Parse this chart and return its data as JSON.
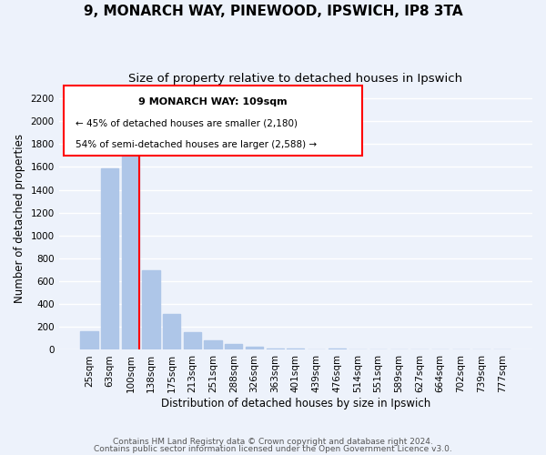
{
  "title": "9, MONARCH WAY, PINEWOOD, IPSWICH, IP8 3TA",
  "subtitle": "Size of property relative to detached houses in Ipswich",
  "xlabel": "Distribution of detached houses by size in Ipswich",
  "ylabel": "Number of detached properties",
  "categories": [
    "25sqm",
    "63sqm",
    "100sqm",
    "138sqm",
    "175sqm",
    "213sqm",
    "251sqm",
    "288sqm",
    "326sqm",
    "363sqm",
    "401sqm",
    "439sqm",
    "476sqm",
    "514sqm",
    "551sqm",
    "589sqm",
    "627sqm",
    "664sqm",
    "702sqm",
    "739sqm",
    "777sqm"
  ],
  "values": [
    160,
    1590,
    1750,
    700,
    315,
    155,
    80,
    50,
    30,
    10,
    15,
    5,
    10,
    0,
    0,
    0,
    0,
    0,
    0,
    0,
    0
  ],
  "bar_color": "#aec6e8",
  "red_line_index": 2,
  "ylim": [
    0,
    2300
  ],
  "yticks": [
    0,
    200,
    400,
    600,
    800,
    1000,
    1200,
    1400,
    1600,
    1800,
    2000,
    2200
  ],
  "annotation_title": "9 MONARCH WAY: 109sqm",
  "annotation_line1": "← 45% of detached houses are smaller (2,180)",
  "annotation_line2": "54% of semi-detached houses are larger (2,588) →",
  "footer1": "Contains HM Land Registry data © Crown copyright and database right 2024.",
  "footer2": "Contains public sector information licensed under the Open Government Licence v3.0.",
  "background_color": "#edf2fb",
  "grid_color": "#ffffff",
  "title_fontsize": 11,
  "subtitle_fontsize": 9.5,
  "axis_label_fontsize": 8.5,
  "tick_fontsize": 7.5,
  "footer_fontsize": 6.5,
  "annot_fontsize_title": 8,
  "annot_fontsize_body": 7.5
}
